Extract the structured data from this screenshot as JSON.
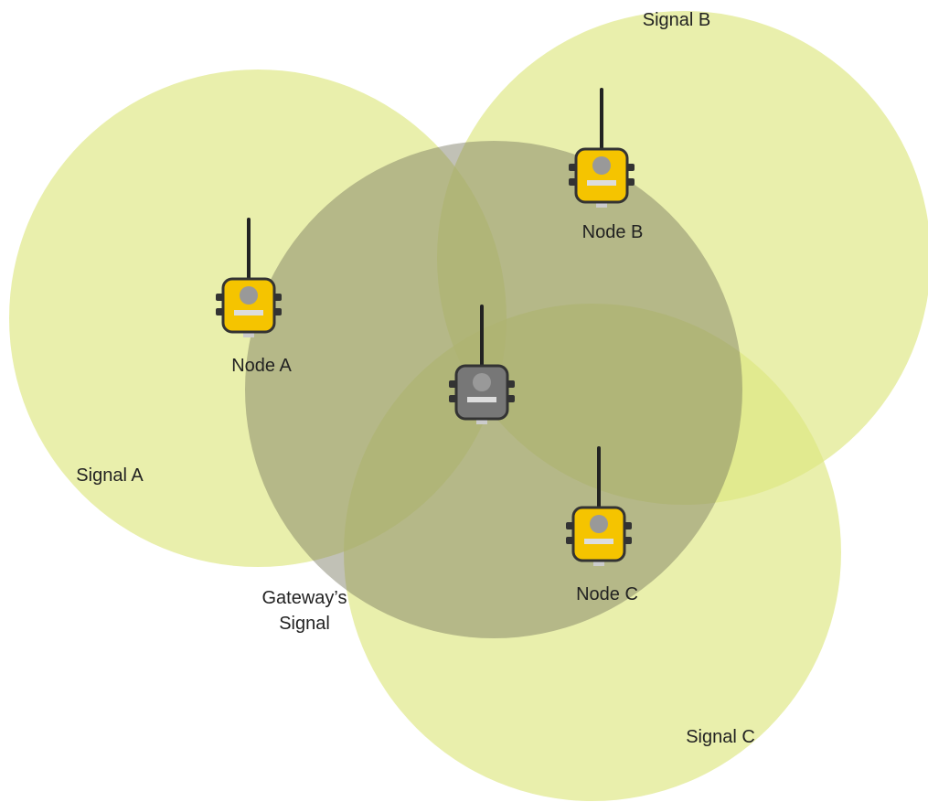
{
  "signals": [
    {
      "label": "Signal A"
    },
    {
      "label": "Signal B"
    },
    {
      "label": "Signal C"
    }
  ],
  "nodes": [
    {
      "label": "Node A"
    },
    {
      "label": "Node B"
    },
    {
      "label": "Node C"
    }
  ],
  "gateway": {
    "label_lines": [
      "Gateway’s",
      "Signal"
    ]
  }
}
